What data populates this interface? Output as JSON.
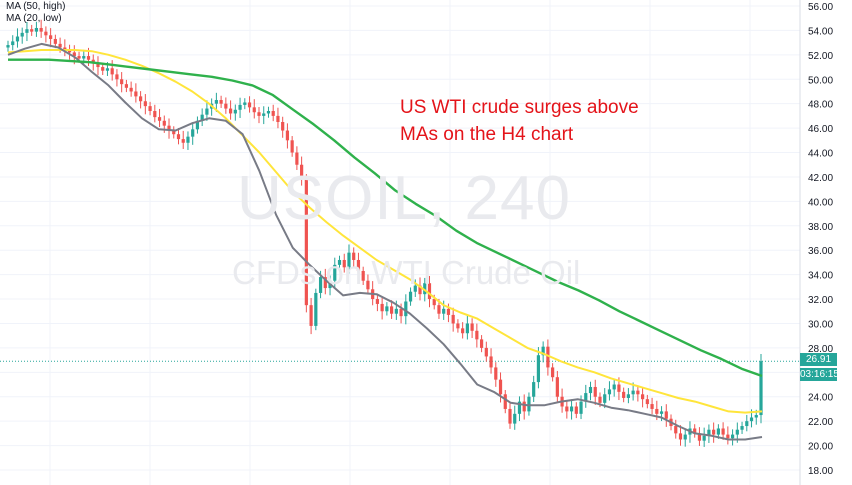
{
  "legend": {
    "ma50": "MA (50, high)",
    "ma20": "MA (20, low)"
  },
  "annotation": {
    "line1": "US WTI crude surges above",
    "line2": "MAs on the H4 chart"
  },
  "watermark": {
    "symbol": "USOIL, 240",
    "description": "CFDs on WTI Crude Oil"
  },
  "price_badges": {
    "last_price": "26.91",
    "countdown": "03:16:15"
  },
  "colors": {
    "up": "#26a69a",
    "down": "#ef5350",
    "ma_green": "#2fb14c",
    "ma_yellow": "#ffe53b",
    "ma_gray": "#787b86",
    "annotation": "#e4141a",
    "grid": "#f0f3fa",
    "last_price_line": "#26a69a"
  },
  "chart_data": {
    "type": "candlestick",
    "symbol": "USOIL",
    "timeframe": "240",
    "y_ticks": [
      18.0,
      20.0,
      22.0,
      24.0,
      26.0,
      28.0,
      30.0,
      32.0,
      34.0,
      36.0,
      38.0,
      40.0,
      42.0,
      44.0,
      46.0,
      48.0,
      50.0,
      52.0,
      54.0,
      56.0
    ],
    "ylim": [
      17.5,
      56.8
    ],
    "last_price": 26.91,
    "grid": true,
    "candles_close": [
      52.8,
      53.1,
      53.5,
      53.8,
      54.1,
      53.9,
      54.2,
      53.9,
      53.6,
      53.3,
      52.9,
      52.6,
      52.4,
      52.2,
      51.9,
      51.7,
      51.9,
      51.6,
      51.3,
      51.0,
      50.7,
      50.9,
      50.4,
      50.0,
      49.6,
      49.3,
      49.0,
      48.6,
      48.2,
      47.8,
      47.4,
      46.9,
      46.6,
      46.2,
      45.8,
      45.5,
      45.1,
      44.8,
      45.3,
      45.9,
      46.6,
      47.1,
      47.6,
      48.0,
      48.3,
      48.0,
      47.6,
      47.2,
      47.5,
      47.9,
      48.1,
      47.7,
      47.3,
      47.0,
      47.2,
      47.4,
      47.0,
      46.5,
      45.8,
      45.0,
      44.0,
      43.0,
      41.8,
      31.5,
      29.8,
      32.5,
      33.8,
      32.9,
      33.5,
      34.8,
      35.2,
      34.6,
      35.8,
      35.2,
      34.3,
      33.5,
      32.8,
      32.0,
      31.6,
      31.0,
      31.4,
      30.8,
      31.2,
      30.6,
      31.8,
      32.6,
      33.1,
      32.4,
      33.3,
      32.0,
      31.5,
      30.8,
      31.2,
      30.7,
      30.0,
      29.6,
      29.2,
      30.0,
      29.4,
      28.7,
      28.0,
      27.3,
      26.4,
      25.4,
      24.2,
      23.0,
      21.8,
      22.6,
      23.6,
      22.8,
      24.0,
      25.2,
      27.4,
      28.1,
      26.4,
      25.6,
      24.0,
      23.2,
      22.8,
      23.2,
      22.6,
      23.6,
      24.3,
      24.8,
      24.0,
      23.5,
      24.2,
      24.6,
      25.0,
      24.4,
      23.9,
      24.2,
      24.5,
      24.2,
      23.8,
      23.4,
      23.0,
      22.6,
      22.8,
      22.2,
      21.6,
      21.0,
      20.5,
      20.9,
      21.4,
      21.0,
      20.4,
      20.8,
      21.3,
      20.9,
      21.4,
      20.9,
      20.6,
      20.9,
      21.3,
      21.6,
      22.0,
      22.3,
      22.5,
      26.91
    ],
    "series": [
      {
        "name": "MA (50, high)",
        "color": "#ffe53b",
        "values": [
          52.2,
          52.3,
          52.4,
          52.4,
          52.4,
          52.3,
          52.0,
          51.6,
          51.1,
          50.5,
          49.8,
          49.0,
          48.0,
          46.8,
          45.4,
          44.0,
          42.4,
          40.8,
          39.5,
          38.3,
          37.2,
          36.2,
          35.2,
          34.4,
          33.6,
          32.6,
          31.5,
          30.9,
          30.4,
          29.6,
          28.8,
          28.0,
          27.5,
          26.9,
          26.4,
          26.0,
          25.5,
          25.1,
          24.7,
          24.3,
          23.9,
          23.6,
          23.2,
          22.8,
          22.7,
          22.8
        ]
      },
      {
        "name": "MA (20, low)",
        "color": "#787b86",
        "values": [
          52.0,
          52.5,
          52.9,
          52.6,
          51.8,
          50.6,
          49.5,
          48.1,
          46.8,
          45.9,
          45.8,
          46.4,
          46.8,
          46.6,
          45.5,
          42.5,
          38.9,
          36.2,
          34.8,
          33.5,
          32.3,
          32.5,
          32.4,
          31.7,
          30.8,
          29.6,
          28.3,
          26.7,
          25.0,
          24.4,
          23.5,
          23.3,
          23.3,
          23.6,
          23.8,
          23.5,
          23.1,
          22.9,
          22.6,
          22.3,
          21.6,
          21.0,
          20.8,
          20.5,
          20.5,
          20.7
        ]
      },
      {
        "name": "",
        "color": "#2fb14c",
        "values": [
          51.6,
          51.6,
          51.6,
          51.5,
          51.4,
          51.2,
          51.0,
          50.8,
          50.6,
          50.4,
          50.2,
          49.9,
          49.5,
          48.7,
          47.5,
          46.3,
          45.0,
          43.6,
          42.3,
          40.9,
          39.8,
          38.8,
          37.6,
          36.6,
          35.8,
          35.0,
          34.2,
          33.4,
          32.7,
          31.9,
          31.0,
          30.2,
          29.4,
          28.6,
          27.8,
          27.1,
          26.3,
          25.7
        ]
      }
    ]
  }
}
